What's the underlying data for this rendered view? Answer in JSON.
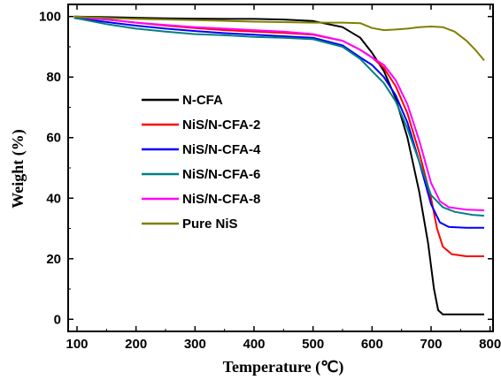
{
  "chart_data": {
    "type": "line",
    "xlabel": "Temperature (℃)",
    "ylabel": "Weight (%)",
    "xlim": [
      85,
      805
    ],
    "ylim": [
      -4,
      104
    ],
    "x_ticks": [
      100,
      200,
      300,
      400,
      500,
      600,
      700,
      800
    ],
    "y_ticks": [
      0,
      20,
      40,
      60,
      80,
      100
    ],
    "grid": false,
    "legend_position": "center-left",
    "series": [
      {
        "name": "N-CFA",
        "color": "#000000",
        "x": [
          95,
          150,
          200,
          250,
          300,
          350,
          400,
          450,
          500,
          550,
          580,
          600,
          620,
          640,
          660,
          680,
          695,
          705,
          712,
          720,
          740,
          790
        ],
        "y": [
          100,
          99.8,
          99.6,
          99.4,
          99.3,
          99.2,
          99.2,
          99,
          98.5,
          96.5,
          93,
          88,
          82,
          73,
          60,
          42,
          25,
          10,
          3,
          1.6,
          1.6,
          1.6
        ]
      },
      {
        "name": "NiS/N-CFA-2",
        "color": "#ff0000",
        "x": [
          95,
          150,
          200,
          250,
          300,
          350,
          400,
          450,
          500,
          550,
          580,
          600,
          620,
          640,
          660,
          680,
          700,
          710,
          720,
          735,
          760,
          790
        ],
        "y": [
          99.8,
          99,
          98,
          97,
          96.2,
          95.5,
          95,
          94.6,
          94,
          92,
          89,
          86.5,
          83,
          77,
          68,
          55,
          40,
          30,
          24,
          21.5,
          20.8,
          20.8
        ]
      },
      {
        "name": "NiS/N-CFA-4",
        "color": "#0000ff",
        "x": [
          95,
          150,
          200,
          250,
          300,
          350,
          400,
          450,
          500,
          550,
          580,
          600,
          620,
          640,
          660,
          680,
          700,
          715,
          730,
          760,
          790
        ],
        "y": [
          99.5,
          98.2,
          97,
          96,
          95.2,
          94.5,
          94,
          93.5,
          93,
          90.5,
          86.5,
          84,
          80,
          74,
          65,
          52,
          38,
          32,
          30.5,
          30.2,
          30.2
        ]
      },
      {
        "name": "NiS/N-CFA-6",
        "color": "#008080",
        "x": [
          95,
          150,
          200,
          250,
          300,
          350,
          400,
          450,
          500,
          550,
          580,
          600,
          620,
          640,
          660,
          680,
          700,
          720,
          740,
          770,
          790
        ],
        "y": [
          99.6,
          97.5,
          96,
          95,
          94.2,
          93.8,
          93.3,
          93,
          92.5,
          90,
          86,
          82,
          78,
          72,
          63,
          52,
          41,
          37,
          35.5,
          34.5,
          34.2
        ]
      },
      {
        "name": "NiS/N-CFA-8",
        "color": "#ff00ff",
        "x": [
          95,
          150,
          200,
          250,
          300,
          350,
          400,
          450,
          500,
          550,
          580,
          600,
          620,
          640,
          660,
          680,
          700,
          715,
          730,
          760,
          790
        ],
        "y": [
          100,
          99,
          98,
          97.2,
          96.5,
          96,
          95.5,
          95,
          94.2,
          92,
          89,
          86.5,
          84,
          79,
          71,
          59,
          45,
          39,
          37,
          36.2,
          36
        ]
      },
      {
        "name": "Pure NiS",
        "color": "#808000",
        "x": [
          95,
          150,
          200,
          300,
          400,
          500,
          550,
          580,
          600,
          620,
          640,
          660,
          680,
          700,
          720,
          740,
          760,
          775,
          790
        ],
        "y": [
          100,
          99.5,
          99.2,
          98.8,
          98.3,
          98,
          98,
          97.8,
          96.2,
          95.5,
          95.7,
          96,
          96.5,
          96.7,
          96.5,
          95,
          92,
          89,
          85.5
        ]
      }
    ]
  }
}
